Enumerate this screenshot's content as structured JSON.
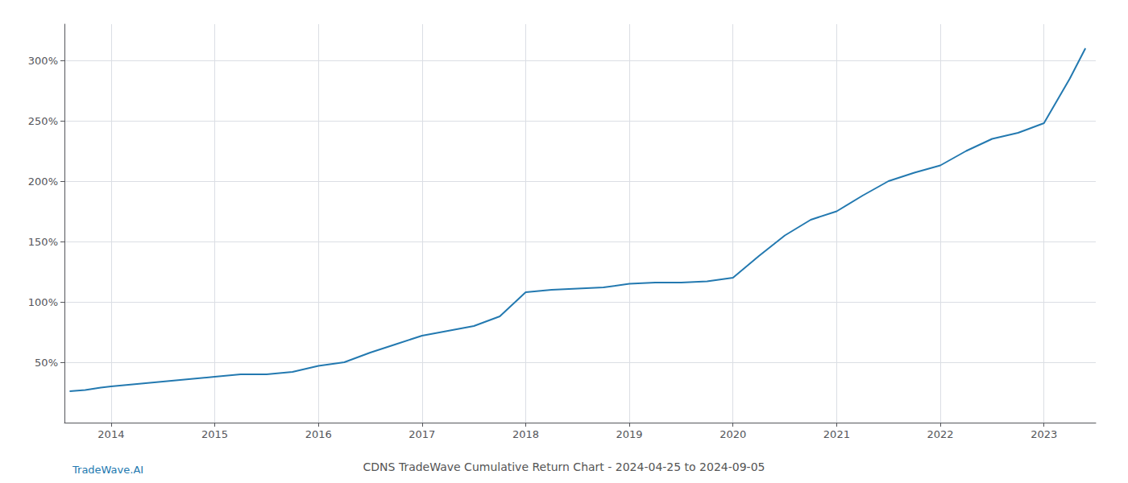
{
  "chart_data": {
    "type": "line",
    "title": "CDNS TradeWave Cumulative Return Chart - 2024-04-25 to 2024-09-05",
    "annotations": [
      "TradeWave.AI"
    ],
    "x": [
      2013.6,
      2013.75,
      2013.9,
      2014.0,
      2014.25,
      2014.5,
      2014.75,
      2015.0,
      2015.25,
      2015.5,
      2015.75,
      2016.0,
      2016.25,
      2016.5,
      2016.75,
      2017.0,
      2017.25,
      2017.5,
      2017.75,
      2018.0,
      2018.25,
      2018.5,
      2018.75,
      2019.0,
      2019.25,
      2019.5,
      2019.75,
      2020.0,
      2020.25,
      2020.5,
      2020.75,
      2021.0,
      2021.25,
      2021.5,
      2021.75,
      2022.0,
      2022.25,
      2022.5,
      2022.75,
      2023.0,
      2023.25,
      2023.4
    ],
    "values": [
      26,
      27,
      29,
      30,
      32,
      34,
      36,
      38,
      40,
      40,
      42,
      47,
      50,
      58,
      65,
      72,
      76,
      80,
      88,
      108,
      110,
      111,
      112,
      115,
      116,
      116,
      117,
      120,
      138,
      155,
      168,
      175,
      188,
      200,
      207,
      213,
      225,
      235,
      240,
      248,
      285,
      310
    ],
    "color": "#2379b0",
    "xlim": [
      2013.55,
      2023.5
    ],
    "xticks": [
      2014,
      2015,
      2016,
      2017,
      2018,
      2019,
      2020,
      2021,
      2022,
      2023
    ],
    "ylim": [
      0,
      330
    ],
    "yticks": [
      {
        "value": 50,
        "label": "50%"
      },
      {
        "value": 100,
        "label": "100%"
      },
      {
        "value": 150,
        "label": "150%"
      },
      {
        "value": 200,
        "label": "200%"
      },
      {
        "value": 250,
        "label": "250%"
      },
      {
        "value": 300,
        "label": "300%"
      }
    ],
    "grid": true
  }
}
